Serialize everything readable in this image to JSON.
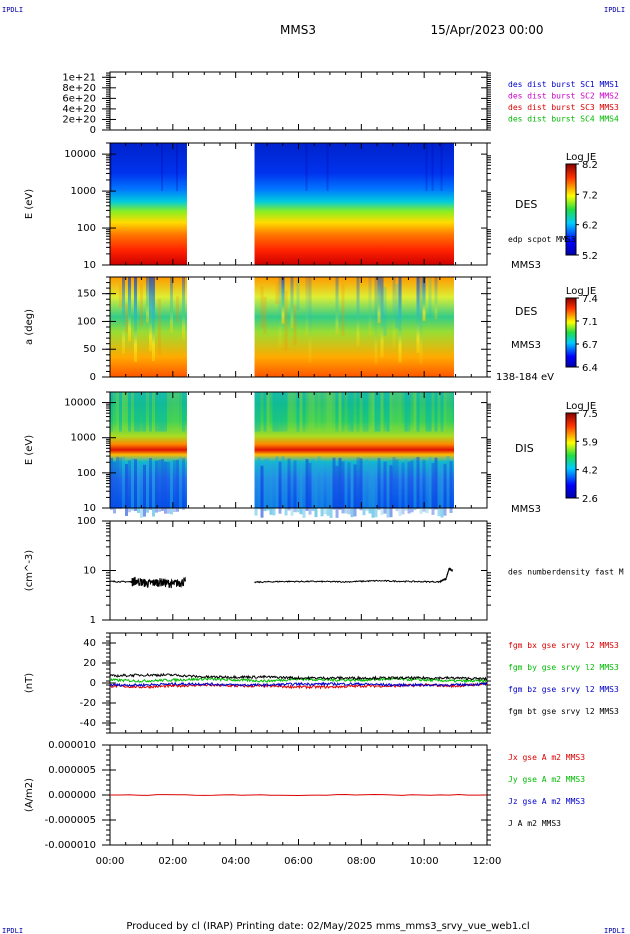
{
  "header": {
    "logo_left": "IPDLI",
    "logo_right": "IPDLI",
    "spacecraft": "MMS3",
    "datetime": "15/Apr/2023 00:00"
  },
  "footer": {
    "text": "Produced by cl (IRAP)   Printing date: 02/May/2025   mms_mms3_srvy_vue_web1.cl",
    "logo_left": "IPDLI",
    "logo_right": "IPDLI"
  },
  "time_axis": {
    "range_hours": [
      0,
      12
    ],
    "tick_labels": [
      "00:00",
      "02:00",
      "04:00",
      "06:00",
      "08:00",
      "10:00",
      "12:00"
    ],
    "tick_hours": [
      0,
      2,
      4,
      6,
      8,
      10,
      12
    ]
  },
  "colors": {
    "mms1": "#0000cc",
    "mms2": "#cc00cc",
    "mms3": "#dd0000",
    "mms4": "#00bb00",
    "black": "#000000"
  },
  "chart_data": [
    {
      "type": "line",
      "panel": "burst",
      "ylabel": "",
      "ylim": [
        0,
        1.1e+21
      ],
      "y_tick_labels": [
        "1e+21",
        "8e+20",
        "6e+20",
        "4e+20",
        "2e+20",
        "0"
      ],
      "y_tick_values": [
        1e+21,
        8e+20,
        6e+20,
        4e+20,
        2e+20,
        0
      ],
      "legend": [
        {
          "text": "des dist burst SC1 MMS1",
          "color": "#0000cc"
        },
        {
          "text": "des dist burst SC2 MMS2",
          "color": "#cc00cc"
        },
        {
          "text": "des dist burst SC3 MMS3",
          "color": "#dd0000"
        },
        {
          "text": "des dist burst SC4 MMS4",
          "color": "#00bb00"
        }
      ],
      "series": [
        {
          "x": [
            0,
            12
          ],
          "values": [
            0,
            0
          ]
        }
      ]
    },
    {
      "type": "heatmap",
      "panel": "des_energy",
      "ylabel": "E (eV)",
      "ylog": true,
      "ylim": [
        10,
        20000
      ],
      "y_tick_labels": [
        "10000",
        "1000",
        "100",
        "10"
      ],
      "y_tick_values": [
        10000,
        1000,
        100,
        10
      ],
      "side_labels": [
        "DES",
        "edp scpot MMS3",
        "MMS3"
      ],
      "colorbar": {
        "title": "Log JE",
        "tick_labels": [
          "8.2",
          "7.2",
          "6.2",
          "5.2"
        ],
        "range": [
          5.2,
          8.2
        ]
      },
      "data_gaps_hours": [
        [
          2.45,
          4.6
        ],
        [
          10.95,
          12
        ]
      ]
    },
    {
      "type": "heatmap",
      "panel": "des_pitch",
      "ylabel": "a (deg)",
      "ylim": [
        0,
        180
      ],
      "y_tick_labels": [
        "150",
        "100",
        "50",
        "0"
      ],
      "y_tick_values": [
        150,
        100,
        50,
        0
      ],
      "side_labels": [
        "DES",
        "MMS3",
        "138-184 eV"
      ],
      "colorbar": {
        "title": "Log JE",
        "tick_labels": [
          "7.4",
          "7.1",
          "6.7",
          "6.4"
        ],
        "range": [
          6.4,
          7.4
        ]
      },
      "data_gaps_hours": [
        [
          2.45,
          4.6
        ],
        [
          10.95,
          12
        ]
      ]
    },
    {
      "type": "heatmap",
      "panel": "dis_energy",
      "ylabel": "E (eV)",
      "ylog": true,
      "ylim": [
        10,
        20000
      ],
      "y_tick_labels": [
        "10000",
        "1000",
        "100",
        "10"
      ],
      "y_tick_values": [
        10000,
        1000,
        100,
        10
      ],
      "side_labels": [
        "DIS",
        "MMS3"
      ],
      "colorbar": {
        "title": "Log JE",
        "tick_labels": [
          "7.5",
          "5.9",
          "4.2",
          "2.6"
        ],
        "range": [
          2.6,
          7.5
        ]
      },
      "data_gaps_hours": [
        [
          2.45,
          4.6
        ],
        [
          10.95,
          12
        ]
      ]
    },
    {
      "type": "line",
      "panel": "density",
      "ylabel": "(cm^-3)",
      "ylog": true,
      "ylim": [
        1,
        100
      ],
      "y_tick_labels": [
        "100",
        "10",
        "1"
      ],
      "y_tick_values": [
        100,
        10,
        1
      ],
      "legend": [
        {
          "text": "des numberdensity fast M",
          "color": "#000000"
        }
      ],
      "series": [
        {
          "x": [
            0.0,
            0.7,
            0.8,
            1.2,
            1.6,
            2.0,
            2.4
          ],
          "values": [
            6.0,
            5.9,
            6.3,
            5.5,
            5.9,
            5.4,
            6.0
          ]
        },
        {
          "x": [
            4.6,
            5.5,
            6.5,
            7.5,
            8.5,
            9.5,
            10.5,
            10.7,
            10.8,
            10.9
          ],
          "values": [
            5.8,
            6.0,
            6.0,
            5.9,
            6.2,
            6.0,
            5.9,
            6.8,
            11.0,
            10.0
          ]
        }
      ]
    },
    {
      "type": "line",
      "panel": "magnetic_field",
      "ylabel": "(nT)",
      "ylim": [
        -50,
        50
      ],
      "y_tick_labels": [
        "40",
        "20",
        "0",
        "-20",
        "-40"
      ],
      "y_tick_values": [
        40,
        20,
        0,
        -20,
        -40
      ],
      "legend": [
        {
          "text": "fgm bx gse srvy l2 MMS3",
          "color": "#dd0000"
        },
        {
          "text": "fgm by gse srvy l2 MMS3",
          "color": "#00bb00"
        },
        {
          "text": "fgm bz gse srvy l2 MMS3",
          "color": "#0000cc"
        },
        {
          "text": "fgm bt gse srvy l2 MMS3",
          "color": "#000000"
        }
      ],
      "series": [
        {
          "x": [
            0,
            1,
            2,
            3,
            4,
            5,
            6,
            7,
            8,
            9,
            10,
            11,
            12
          ],
          "values": [
            -3,
            -4,
            -3,
            -2,
            -3,
            -3,
            -4,
            -4,
            -3,
            -3,
            -2,
            -3,
            -1
          ]
        },
        {
          "x": [
            0,
            1,
            2,
            3,
            4,
            5,
            6,
            7,
            8,
            9,
            10,
            11,
            12
          ],
          "values": [
            3,
            2,
            3,
            4,
            3,
            2,
            4,
            3,
            3,
            4,
            3,
            2,
            2
          ]
        },
        {
          "x": [
            0,
            1,
            2,
            3,
            4,
            5,
            6,
            7,
            8,
            9,
            10,
            11,
            12
          ],
          "values": [
            -2,
            -2,
            -1,
            -1,
            -2,
            -2,
            -1,
            -1,
            -1,
            -2,
            -2,
            -2,
            -1
          ]
        },
        {
          "x": [
            0,
            1,
            2,
            3,
            4,
            5,
            6,
            7,
            8,
            9,
            10,
            11,
            12
          ],
          "values": [
            7,
            8,
            8,
            6,
            6,
            6,
            5,
            5,
            5,
            5,
            5,
            5,
            4
          ]
        }
      ]
    },
    {
      "type": "line",
      "panel": "current",
      "ylabel": "(A/m2)",
      "ylim": [
        -1e-05,
        1e-05
      ],
      "y_tick_labels": [
        "0.000010",
        "0.000005",
        "0.000000",
        "-0.000005",
        "-0.000010"
      ],
      "y_tick_values": [
        1e-05,
        5e-06,
        0,
        -5e-06,
        -1e-05
      ],
      "legend": [
        {
          "text": "Jx gse A m2 MMS3",
          "color": "#dd0000"
        },
        {
          "text": "Jy gse A m2 MMS3",
          "color": "#00bb00"
        },
        {
          "text": "Jz gse A m2 MMS3",
          "color": "#0000cc"
        },
        {
          "text": "J A m2 MMS3",
          "color": "#000000"
        }
      ],
      "series": [
        {
          "x": [
            0,
            12
          ],
          "values": [
            0,
            0
          ]
        }
      ]
    }
  ]
}
